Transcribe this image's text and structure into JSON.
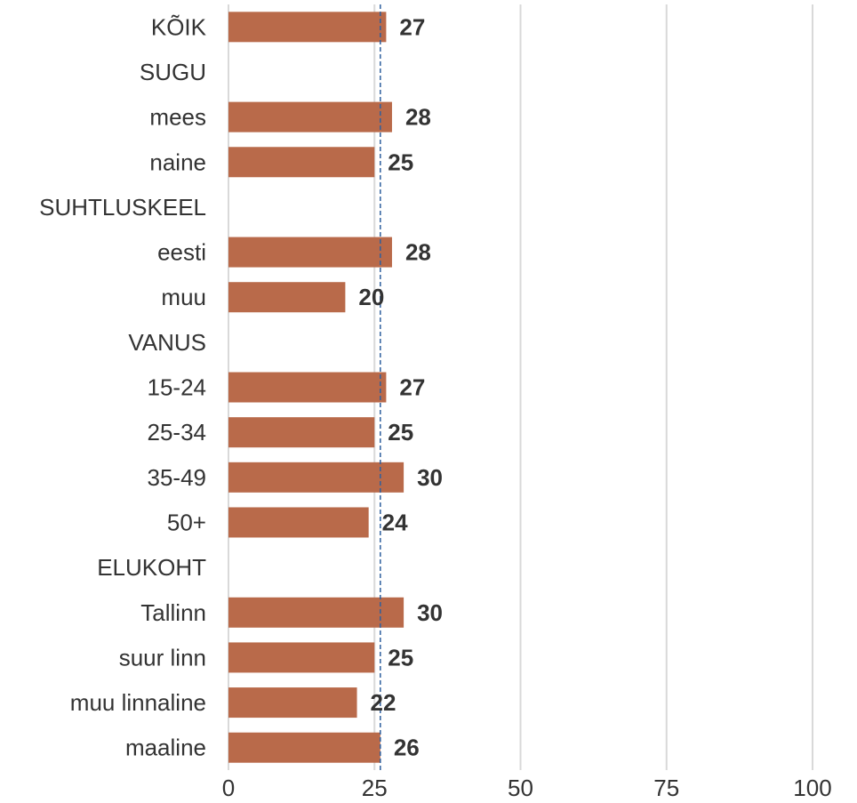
{
  "chart_data": {
    "type": "bar",
    "orientation": "horizontal",
    "title": "",
    "xlabel": "",
    "ylabel": "",
    "xlim": [
      0,
      100
    ],
    "x_ticks": [
      0,
      25,
      50,
      75,
      100
    ],
    "grid": "vertical",
    "reference_line": {
      "value": 26,
      "style": "dashed"
    },
    "categories": [
      "KÕIK",
      "SUGU",
      "mees",
      "naine",
      "SUHTLUSKEEL",
      "eesti",
      "muu",
      "VANUS",
      "15-24",
      "25-34",
      "35-49",
      "50+",
      "ELUKOHT",
      "Tallinn",
      "suur linn",
      "muu linnaline",
      "maaline"
    ],
    "values": [
      27,
      null,
      28,
      25,
      null,
      28,
      20,
      null,
      27,
      25,
      30,
      24,
      null,
      30,
      25,
      22,
      26
    ],
    "colors": {
      "bar": "#b96a4a",
      "gridline": "#d9d9d9",
      "reference_line": "#2e5f9e",
      "text": "#333333"
    }
  }
}
